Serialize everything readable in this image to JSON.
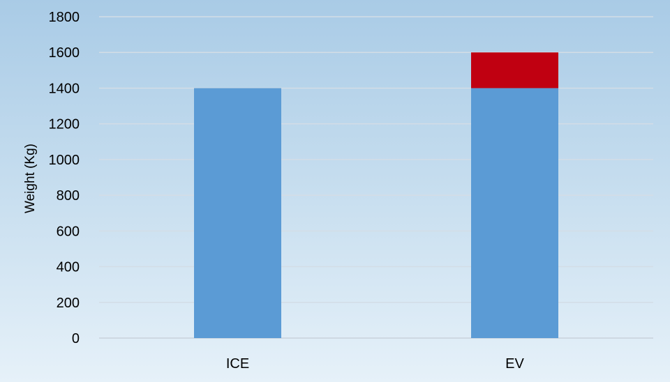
{
  "chart_data": {
    "type": "bar",
    "stacked": true,
    "title": "",
    "xlabel": "",
    "ylabel": "Weight (Kg)",
    "ylim": [
      0,
      1800
    ],
    "yticks": [
      "0",
      "200",
      "400",
      "600",
      "800",
      "1000",
      "1200",
      "1400",
      "1600",
      "1800"
    ],
    "categories": [
      "ICE",
      "EV"
    ],
    "series": [
      {
        "values": [
          1400,
          1400
        ],
        "color": "#5b9bd5"
      },
      {
        "values": [
          0,
          200
        ],
        "color": "#c00011"
      }
    ],
    "grid": true,
    "legend": "none"
  }
}
